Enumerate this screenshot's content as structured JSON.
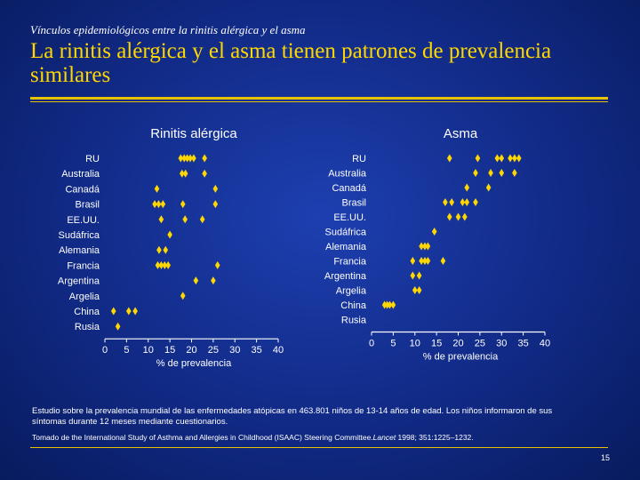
{
  "header": {
    "subtitle": "Vínculos epidemiológicos entre la rinitis alérgica y el asma",
    "title": "La rinitis alérgica y el asma tienen patrones de prevalencia similares"
  },
  "colors": {
    "background": "#112a86",
    "title": "#ffd700",
    "points": "#ffd700",
    "text": "#ffffff"
  },
  "chart_data": [
    {
      "type": "scatter",
      "title": "Rinitis alérgica",
      "xlabel": "% de prevalencia",
      "ylabel": "",
      "xlim": [
        0,
        40
      ],
      "xticks": [
        0,
        5,
        10,
        15,
        20,
        25,
        30,
        35,
        40
      ],
      "categories": [
        "RU",
        "Australia",
        "Canadá",
        "Brasil",
        "EE.UU.",
        "Sudáfrica",
        "Alemania",
        "Francia",
        "Argentina",
        "Argelia",
        "China",
        "Rusia"
      ],
      "series": [
        {
          "name": "RU",
          "values": [
            17.5,
            18.3,
            19,
            19.7,
            20.5,
            23
          ]
        },
        {
          "name": "Australia",
          "values": [
            17.8,
            18.6,
            23
          ]
        },
        {
          "name": "Canadá",
          "values": [
            12,
            25.5
          ]
        },
        {
          "name": "Brasil",
          "values": [
            11.5,
            12.4,
            13.4,
            18,
            25.5
          ]
        },
        {
          "name": "EE.UU.",
          "values": [
            13,
            18.5,
            22.5
          ]
        },
        {
          "name": "Sudáfrica",
          "values": [
            15
          ]
        },
        {
          "name": "Alemania",
          "values": [
            12.5,
            14
          ]
        },
        {
          "name": "Francia",
          "values": [
            12.2,
            13,
            13.8,
            14.6,
            26
          ]
        },
        {
          "name": "Argentina",
          "values": [
            21,
            25
          ]
        },
        {
          "name": "Argelia",
          "values": [
            18
          ]
        },
        {
          "name": "China",
          "values": [
            2,
            5.5,
            7
          ]
        },
        {
          "name": "Rusia",
          "values": [
            3
          ]
        }
      ]
    },
    {
      "type": "scatter",
      "title": "Asma",
      "xlabel": "% de prevalencia",
      "ylabel": "",
      "xlim": [
        0,
        40
      ],
      "xticks": [
        0,
        5,
        10,
        15,
        20,
        25,
        30,
        35,
        40
      ],
      "categories": [
        "RU",
        "Australia",
        "Canadá",
        "Brasil",
        "EE.UU.",
        "Sudáfrica",
        "Alemania",
        "Francia",
        "Argentina",
        "Argelia",
        "China",
        "Rusia"
      ],
      "series": [
        {
          "name": "RU",
          "values": [
            18,
            24.5,
            29,
            30,
            32,
            33,
            34
          ]
        },
        {
          "name": "Australia",
          "values": [
            24,
            27.5,
            30,
            33
          ]
        },
        {
          "name": "Canadá",
          "values": [
            22,
            27
          ]
        },
        {
          "name": "Brasil",
          "values": [
            17,
            18.5,
            21,
            22,
            24
          ]
        },
        {
          "name": "EE.UU.",
          "values": [
            18,
            20,
            21.5
          ]
        },
        {
          "name": "Sudáfrica",
          "values": [
            14.5
          ]
        },
        {
          "name": "Alemania",
          "values": [
            11.5,
            12.3,
            13
          ]
        },
        {
          "name": "Francia",
          "values": [
            9.5,
            11.5,
            12.3,
            13,
            16.5
          ]
        },
        {
          "name": "Argentina",
          "values": [
            9.5,
            11
          ]
        },
        {
          "name": "Argelia",
          "values": [
            10,
            11
          ]
        },
        {
          "name": "China",
          "values": [
            3,
            3.6,
            4.2,
            5
          ]
        },
        {
          "name": "Rusia",
          "values": []
        }
      ]
    }
  ],
  "footer": {
    "study_note": "Estudio sobre la prevalencia mundial de las enfermedades atópicas en 463.801 niños de 13-14 años de edad. Los niños informaron de sus síntomas durante 12 meses mediante cuestionarios.",
    "source": "Tomado de the International Study of Asthma and Allergies in Childhood (ISAAC) Steering Committee.",
    "journal": "Lancet",
    "citation": " 1998; 351:1225–1232.",
    "page_number": "15"
  }
}
